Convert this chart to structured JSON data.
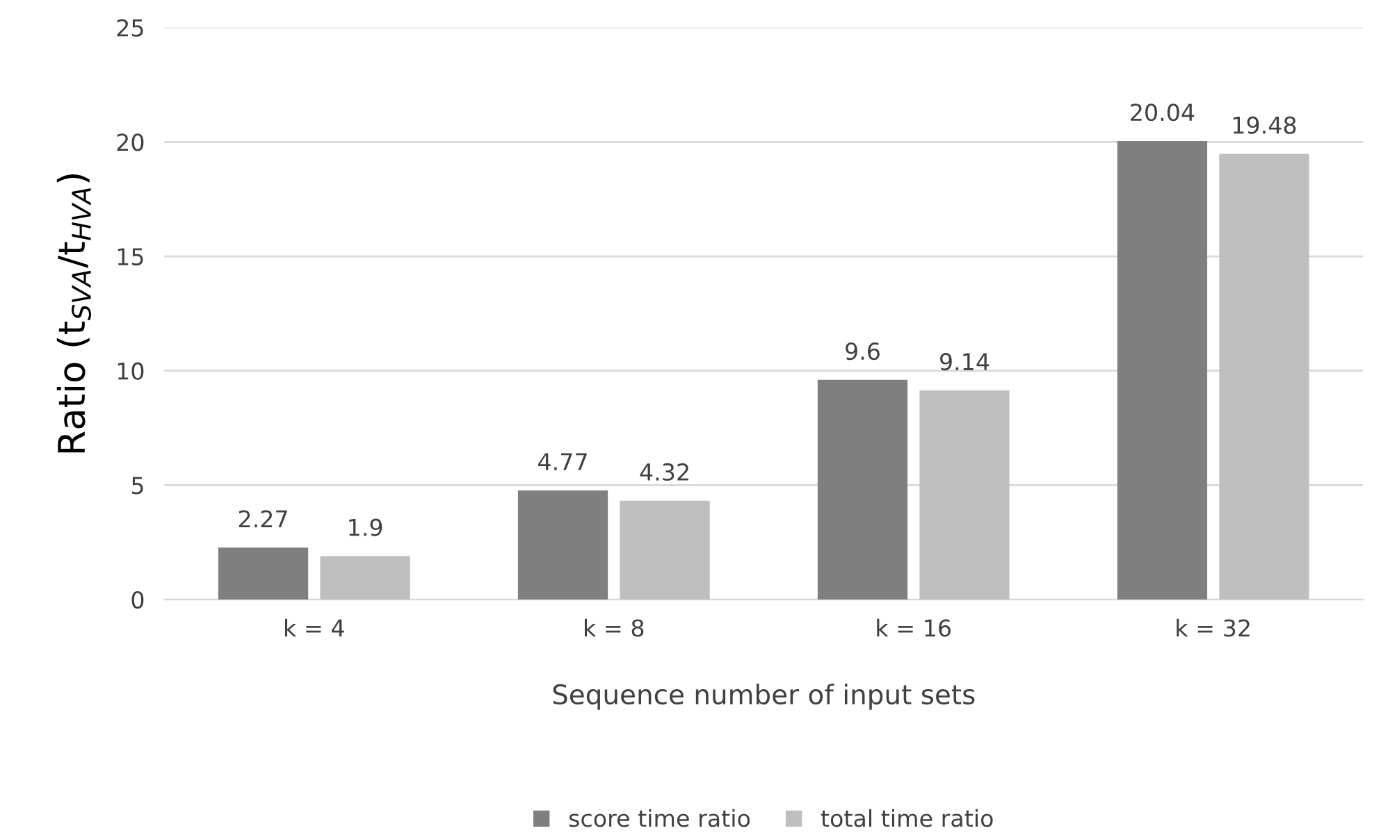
{
  "chart_data": {
    "type": "bar",
    "xlabel": "Sequence number of input sets",
    "ylabel": "Ratio (t$_{SVA}$/t$_{HVA}$)",
    "categories": [
      "k = 4",
      "k = 8",
      "k = 16",
      "k = 32"
    ],
    "series": [
      {
        "name": "score time ratio",
        "color": "#7f7f7f",
        "values": [
          2.27,
          4.77,
          9.6,
          20.04
        ]
      },
      {
        "name": "total time ratio",
        "color": "#bfbfbf",
        "values": [
          1.9,
          4.32,
          9.14,
          19.48
        ]
      }
    ],
    "ylim": [
      0,
      25
    ],
    "yticks": [
      0,
      5,
      10,
      15,
      20,
      25
    ],
    "grid": "y",
    "legend": "bottom",
    "data_labels": true
  }
}
